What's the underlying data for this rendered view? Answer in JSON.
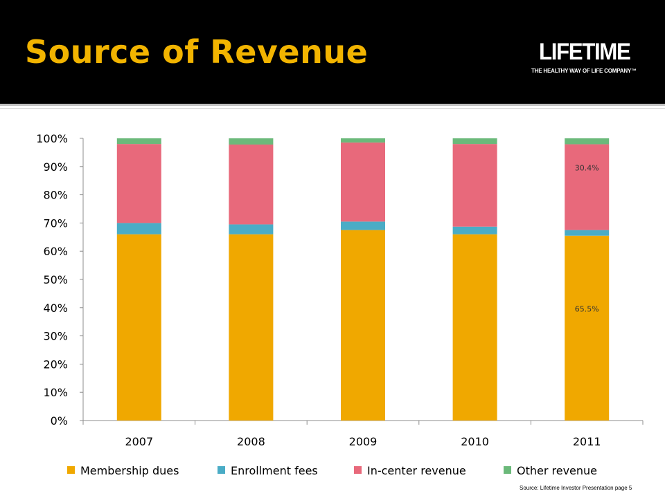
{
  "slide": {
    "title": "Source of Revenue",
    "logo_text": "LIFETIME",
    "logo_tagline": "THE HEALTHY WAY OF LIFE COMPANY™",
    "source_note": "Source: Lifetime Investor Presentation page 5"
  },
  "colors": {
    "header_bg": "#000000",
    "title": "#f2b400"
  },
  "chart_data": {
    "type": "bar",
    "stacked": true,
    "percent_stacked": true,
    "categories": [
      "2007",
      "2008",
      "2009",
      "2010",
      "2011"
    ],
    "series": [
      {
        "name": "Membership dues",
        "color": "#f0a800",
        "values": [
          66.0,
          66.0,
          67.5,
          66.0,
          65.5
        ]
      },
      {
        "name": "Enrollment fees",
        "color": "#4aacc6",
        "values": [
          4.0,
          3.5,
          3.0,
          2.7,
          2.0
        ]
      },
      {
        "name": "In-center revenue",
        "color": "#e8697b",
        "values": [
          28.0,
          28.3,
          28.0,
          29.3,
          30.4
        ]
      },
      {
        "name": "Other revenue",
        "color": "#6bb97a",
        "values": [
          2.0,
          2.2,
          1.5,
          2.0,
          2.1
        ]
      }
    ],
    "y_ticks": [
      "0%",
      "10%",
      "20%",
      "30%",
      "40%",
      "50%",
      "60%",
      "70%",
      "80%",
      "90%",
      "100%"
    ],
    "ylim": [
      0,
      100
    ],
    "annotations": [
      {
        "text": "30.4%",
        "category": "2011",
        "series": "In-center revenue"
      },
      {
        "text": "65.5%",
        "category": "2011",
        "series": "Membership dues"
      }
    ],
    "legend_position": "bottom",
    "grid": false
  }
}
